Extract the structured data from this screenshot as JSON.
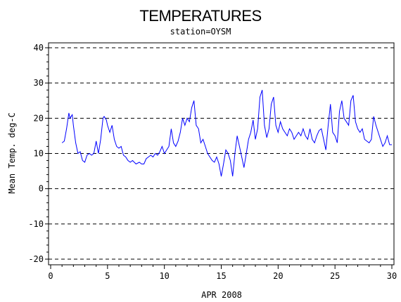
{
  "chart_data": {
    "type": "line",
    "title": "TEMPERATURES",
    "subtitle": "station=OYSM",
    "xlabel": "APR 2008",
    "ylabel": "Mean Temp. deg-C",
    "xlim": [
      0,
      30
    ],
    "ylim": [
      -20,
      40
    ],
    "xticks": [
      0,
      5,
      10,
      15,
      20,
      25,
      30
    ],
    "yticks": [
      -20,
      -10,
      0,
      10,
      20,
      30,
      40
    ],
    "grid": "horizontal dashed",
    "colors": {
      "line": "#0000ff",
      "axis": "#000000",
      "grid": "#000000"
    },
    "series": [
      {
        "x": [
          1.0,
          1.2,
          1.4,
          1.6,
          1.7,
          1.9,
          2.0,
          2.2,
          2.4,
          2.6,
          2.8,
          3.0,
          3.2,
          3.4,
          3.6,
          3.8,
          4.0,
          4.2,
          4.4,
          4.6,
          4.7,
          4.9,
          5.0,
          5.2,
          5.4,
          5.6,
          5.8,
          6.0,
          6.2,
          6.4,
          6.6,
          6.8,
          7.0,
          7.2,
          7.5,
          7.8,
          8.0,
          8.2,
          8.4,
          8.6,
          8.8,
          9.0,
          9.2,
          9.4,
          9.6,
          9.8,
          10.0,
          10.2,
          10.4,
          10.6,
          10.8,
          11.0,
          11.2,
          11.4,
          11.6,
          11.8,
          12.0,
          12.2,
          12.4,
          12.6,
          12.8,
          13.0,
          13.2,
          13.4,
          13.6,
          13.8,
          14.0,
          14.2,
          14.4,
          14.6,
          14.8,
          15.0,
          15.2,
          15.4,
          15.6,
          15.8,
          16.0,
          16.2,
          16.4,
          16.6,
          16.8,
          17.0,
          17.2,
          17.4,
          17.6,
          17.8,
          18.0,
          18.2,
          18.4,
          18.6,
          18.8,
          19.0,
          19.2,
          19.4,
          19.6,
          19.8,
          20.0,
          20.2,
          20.4,
          20.6,
          20.8,
          21.0,
          21.2,
          21.4,
          21.6,
          21.8,
          22.0,
          22.2,
          22.4,
          22.6,
          22.8,
          23.0,
          23.2,
          23.4,
          23.6,
          23.8,
          24.0,
          24.2,
          24.4,
          24.6,
          24.8,
          25.0,
          25.2,
          25.4,
          25.6,
          25.8,
          26.0,
          26.2,
          26.4,
          26.6,
          26.8,
          27.0,
          27.2,
          27.4,
          27.6,
          27.8,
          28.0,
          28.2,
          28.4,
          28.6,
          28.8,
          29.0,
          29.2,
          29.4,
          29.6,
          29.8,
          30.0
        ],
        "values": [
          13,
          13.5,
          17,
          21.5,
          20,
          21,
          18,
          13,
          10,
          10.5,
          8,
          7.5,
          9.5,
          10,
          9.5,
          10,
          13.5,
          10,
          14,
          20,
          20.5,
          19.5,
          18,
          16,
          18,
          14,
          12,
          11.5,
          12,
          9.5,
          9,
          8,
          7.5,
          8,
          7,
          7.5,
          7,
          7,
          8.5,
          9,
          9.5,
          9,
          10,
          9.5,
          10.5,
          12,
          10,
          11,
          12,
          17,
          13,
          12,
          13.5,
          16,
          20,
          18,
          20,
          19,
          23,
          25,
          18,
          17,
          13,
          14,
          12,
          10,
          9,
          8,
          7.5,
          9,
          7,
          3.5,
          7,
          11,
          10,
          8,
          3.5,
          10,
          15,
          12,
          9,
          6,
          10,
          14,
          16,
          19.5,
          14,
          17,
          26,
          28,
          18,
          14.5,
          17,
          24,
          26,
          18,
          16,
          19,
          17,
          16,
          15,
          17,
          16,
          14,
          15,
          16,
          15,
          17,
          15,
          14,
          17,
          14,
          13,
          15,
          16.5,
          17,
          14,
          11,
          18,
          24,
          16,
          15,
          13,
          22,
          25,
          20,
          19,
          18,
          25,
          26.5,
          19,
          17,
          16,
          17,
          14,
          13.5,
          13,
          14,
          20.5,
          18,
          16,
          14,
          12,
          13,
          15,
          12.5,
          12.5
        ]
      }
    ]
  }
}
